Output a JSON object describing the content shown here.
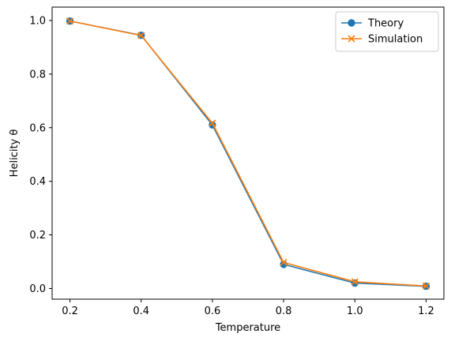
{
  "chart_data": {
    "type": "line",
    "title": "",
    "xlabel": "Temperature",
    "ylabel": "Helicity θ",
    "x": [
      0.2,
      0.4,
      0.6,
      0.8,
      1.0,
      1.2
    ],
    "xlim": [
      0.15,
      1.25
    ],
    "ylim": [
      -0.04,
      1.05
    ],
    "xticks": [
      0.2,
      0.4,
      0.6,
      0.8,
      1.0,
      1.2
    ],
    "yticks": [
      0.0,
      0.2,
      0.4,
      0.6,
      0.8,
      1.0
    ],
    "xtick_labels": [
      "0.2",
      "0.4",
      "0.6",
      "0.8",
      "1.0",
      "1.2"
    ],
    "ytick_labels": [
      "0.0",
      "0.2",
      "0.4",
      "0.6",
      "0.8",
      "1.0"
    ],
    "grid": false,
    "legend_position": "top-right",
    "series": [
      {
        "name": "Theory",
        "values": [
          0.998,
          0.945,
          0.61,
          0.09,
          0.02,
          0.008
        ],
        "color": "#1f77b4",
        "marker": "circle"
      },
      {
        "name": "Simulation",
        "values": [
          0.998,
          0.944,
          0.617,
          0.097,
          0.025,
          0.009
        ],
        "color": "#ff7f0e",
        "marker": "x"
      }
    ]
  }
}
